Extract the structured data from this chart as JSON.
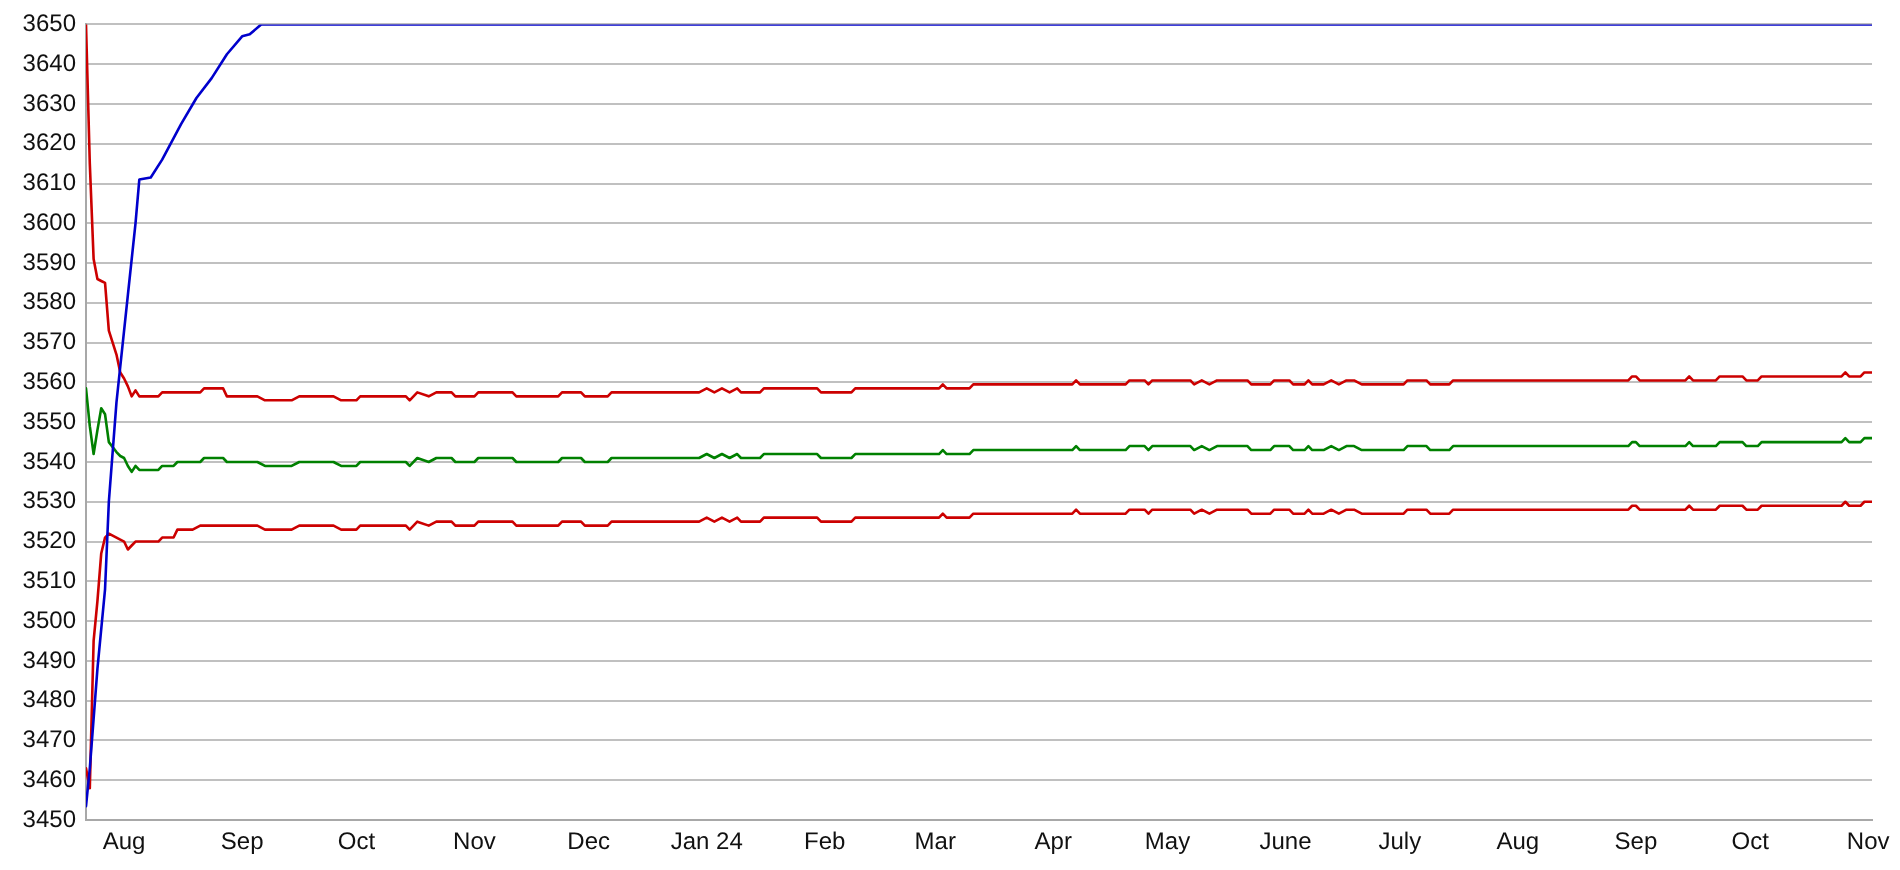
{
  "chart_data": {
    "type": "line",
    "x": [
      "2023-07-22",
      "2023-07-23",
      "2023-07-24",
      "2023-07-25",
      "2023-07-26",
      "2023-07-27",
      "2023-07-28",
      "2023-07-30",
      "2023-07-31",
      "2023-08-01",
      "2023-08-02",
      "2023-08-03",
      "2023-08-04",
      "2023-08-05",
      "2023-08-10",
      "2023-08-11",
      "2023-08-14",
      "2023-08-15",
      "2023-08-19",
      "2023-08-21",
      "2023-08-22",
      "2023-08-27",
      "2023-08-28",
      "2023-09-05",
      "2023-09-07",
      "2023-09-14",
      "2023-09-16",
      "2023-09-25",
      "2023-09-27",
      "2023-10-01",
      "2023-10-02",
      "2023-10-14",
      "2023-10-15",
      "2023-10-17",
      "2023-10-20",
      "2023-10-22",
      "2023-10-26",
      "2023-10-27",
      "2023-11-01",
      "2023-11-02",
      "2023-11-11",
      "2023-11-12",
      "2023-11-23",
      "2023-11-24",
      "2023-11-29",
      "2023-11-30",
      "2023-12-06",
      "2023-12-07",
      "2023-12-30",
      "2024-01-01",
      "2024-01-03",
      "2024-01-05",
      "2024-01-07",
      "2024-01-09",
      "2024-01-10",
      "2024-01-15",
      "2024-01-16",
      "2024-01-30",
      "2024-01-31",
      "2024-02-08",
      "2024-02-09",
      "2024-03-02",
      "2024-03-03",
      "2024-03-04",
      "2024-03-10",
      "2024-03-11",
      "2024-04-06",
      "2024-04-07",
      "2024-04-08",
      "2024-04-20",
      "2024-04-21",
      "2024-04-25",
      "2024-04-26",
      "2024-04-27",
      "2024-05-07",
      "2024-05-08",
      "2024-05-10",
      "2024-05-12",
      "2024-05-14",
      "2024-05-22",
      "2024-05-23",
      "2024-05-28",
      "2024-05-29",
      "2024-06-02",
      "2024-06-03",
      "2024-06-06",
      "2024-06-07",
      "2024-06-08",
      "2024-06-11",
      "2024-06-13",
      "2024-06-15",
      "2024-06-17",
      "2024-06-19",
      "2024-06-21",
      "2024-06-22",
      "2024-07-02",
      "2024-07-03",
      "2024-07-08",
      "2024-07-09",
      "2024-07-14",
      "2024-07-15",
      "2024-08-30",
      "2024-08-31",
      "2024-09-01",
      "2024-09-02",
      "2024-09-14",
      "2024-09-15",
      "2024-09-16",
      "2024-09-17",
      "2024-09-22",
      "2024-09-23",
      "2024-09-29",
      "2024-09-30",
      "2024-10-03",
      "2024-10-04",
      "2024-10-25",
      "2024-10-26",
      "2024-10-27",
      "2024-10-30",
      "2024-10-31",
      "2024-11-02"
    ],
    "series": [
      {
        "color": "#0000cc",
        "x": [
          "2023-07-22",
          "2023-07-23",
          "2023-07-25",
          "2023-07-27",
          "2023-07-28",
          "2023-07-30",
          "2023-08-02",
          "2023-08-04",
          "2023-08-05",
          "2023-08-08",
          "2023-08-11",
          "2023-08-16",
          "2023-08-20",
          "2023-08-24",
          "2023-08-28",
          "2023-09-01",
          "2023-09-03",
          "2023-09-06",
          "2024-11-02"
        ],
        "values": [
          3453.5,
          3463,
          3488,
          3508,
          3530,
          3555,
          3582,
          3600,
          3611,
          3611.5,
          3616,
          3625,
          3631.5,
          3636.5,
          3642.5,
          3647,
          3647.5,
          3650,
          3650
        ]
      },
      {
        "color": "#cc0000",
        "values": [
          3650,
          3615,
          3591,
          3586,
          3585.5,
          3585,
          3573,
          3567,
          3562.5,
          3561,
          3559,
          3556.5,
          3558,
          3556.5,
          3556.5,
          3557.5,
          3557.5,
          3557.5,
          3557.5,
          3557.5,
          3558.5,
          3558.5,
          3556.5,
          3556.5,
          3555.5,
          3555.5,
          3556.5,
          3556.5,
          3555.5,
          3555.5,
          3556.5,
          3556.5,
          3555.5,
          3557.5,
          3556.5,
          3557.5,
          3557.5,
          3556.5,
          3556.5,
          3557.5,
          3557.5,
          3556.5,
          3556.5,
          3557.5,
          3557.5,
          3556.5,
          3556.5,
          3557.5,
          3557.5,
          3558.5,
          3557.5,
          3558.5,
          3557.5,
          3558.5,
          3557.5,
          3557.5,
          3558.5,
          3558.5,
          3557.5,
          3557.5,
          3558.5,
          3558.5,
          3559.5,
          3558.5,
          3558.5,
          3559.5,
          3559.5,
          3560.5,
          3559.5,
          3559.5,
          3560.5,
          3560.5,
          3559.5,
          3560.5,
          3560.5,
          3559.5,
          3560.5,
          3559.5,
          3560.5,
          3560.5,
          3559.5,
          3559.5,
          3560.5,
          3560.5,
          3559.5,
          3559.5,
          3560.5,
          3559.5,
          3559.5,
          3560.5,
          3559.5,
          3560.5,
          3560.5,
          3559.5,
          3559.5,
          3559.5,
          3560.5,
          3560.5,
          3559.5,
          3559.5,
          3560.5,
          3560.5,
          3561.5,
          3561.5,
          3560.5,
          3560.5,
          3561.5,
          3560.5,
          3560.5,
          3560.5,
          3561.5,
          3561.5,
          3560.5,
          3560.5,
          3561.5,
          3561.5,
          3562.5,
          3561.5,
          3561.5,
          3562.5,
          3562.5
        ]
      },
      {
        "color": "#008000",
        "values": [
          3558.5,
          3549,
          3542,
          3548,
          3553.5,
          3552,
          3545,
          3542.5,
          3541.5,
          3541,
          3539,
          3537.5,
          3539,
          3538,
          3538,
          3539,
          3539,
          3540,
          3540,
          3540,
          3541,
          3541,
          3540,
          3540,
          3539,
          3539,
          3540,
          3540,
          3539,
          3539,
          3540,
          3540,
          3539,
          3541,
          3540,
          3541,
          3541,
          3540,
          3540,
          3541,
          3541,
          3540,
          3540,
          3541,
          3541,
          3540,
          3540,
          3541,
          3541,
          3542,
          3541,
          3542,
          3541,
          3542,
          3541,
          3541,
          3542,
          3542,
          3541,
          3541,
          3542,
          3542,
          3543,
          3542,
          3542,
          3543,
          3543,
          3544,
          3543,
          3543,
          3544,
          3544,
          3543,
          3544,
          3544,
          3543,
          3544,
          3543,
          3544,
          3544,
          3543,
          3543,
          3544,
          3544,
          3543,
          3543,
          3544,
          3543,
          3543,
          3544,
          3543,
          3544,
          3544,
          3543,
          3543,
          3543,
          3544,
          3544,
          3543,
          3543,
          3544,
          3544,
          3545,
          3545,
          3544,
          3544,
          3545,
          3544,
          3544,
          3544,
          3545,
          3545,
          3544,
          3544,
          3545,
          3545,
          3546,
          3545,
          3545,
          3546,
          3546
        ]
      },
      {
        "color": "#cc0000",
        "values": [
          3463,
          3458,
          3495,
          3505,
          3517,
          3521,
          3522,
          3521,
          3520.5,
          3520,
          3518,
          3519,
          3520,
          3520,
          3520,
          3521,
          3521,
          3523,
          3523,
          3524,
          3524,
          3524,
          3524,
          3524,
          3523,
          3523,
          3524,
          3524,
          3523,
          3523,
          3524,
          3524,
          3523,
          3525,
          3524,
          3525,
          3525,
          3524,
          3524,
          3525,
          3525,
          3524,
          3524,
          3525,
          3525,
          3524,
          3524,
          3525,
          3525,
          3526,
          3525,
          3526,
          3525,
          3526,
          3525,
          3525,
          3526,
          3526,
          3525,
          3525,
          3526,
          3526,
          3527,
          3526,
          3526,
          3527,
          3527,
          3528,
          3527,
          3527,
          3528,
          3528,
          3527,
          3528,
          3528,
          3527,
          3528,
          3527,
          3528,
          3528,
          3527,
          3527,
          3528,
          3528,
          3527,
          3527,
          3528,
          3527,
          3527,
          3528,
          3527,
          3528,
          3528,
          3527,
          3527,
          3527,
          3528,
          3528,
          3527,
          3527,
          3528,
          3528,
          3529,
          3529,
          3528,
          3528,
          3529,
          3528,
          3528,
          3528,
          3529,
          3529,
          3528,
          3528,
          3529,
          3529,
          3530,
          3529,
          3529,
          3530,
          3530
        ]
      }
    ],
    "xlim": [
      "2023-07-22",
      "2024-11-02"
    ],
    "xticks": [
      {
        "value": "2023-08-01",
        "label": "Aug"
      },
      {
        "value": "2023-09-01",
        "label": "Sep"
      },
      {
        "value": "2023-10-01",
        "label": "Oct"
      },
      {
        "value": "2023-11-01",
        "label": "Nov"
      },
      {
        "value": "2023-12-01",
        "label": "Dec"
      },
      {
        "value": "2024-01-01",
        "label": "Jan 24"
      },
      {
        "value": "2024-02-01",
        "label": "Feb"
      },
      {
        "value": "2024-03-01",
        "label": "Mar"
      },
      {
        "value": "2024-04-01",
        "label": "Apr"
      },
      {
        "value": "2024-05-01",
        "label": "May"
      },
      {
        "value": "2024-06-01",
        "label": "June"
      },
      {
        "value": "2024-07-01",
        "label": "July"
      },
      {
        "value": "2024-08-01",
        "label": "Aug"
      },
      {
        "value": "2024-09-01",
        "label": "Sep"
      },
      {
        "value": "2024-10-01",
        "label": "Oct"
      },
      {
        "value": "2024-11-01",
        "label": "Nov"
      }
    ],
    "ylim": [
      3450,
      3650
    ],
    "yticks": [
      3450,
      3460,
      3470,
      3480,
      3490,
      3500,
      3510,
      3520,
      3530,
      3540,
      3550,
      3560,
      3570,
      3580,
      3590,
      3600,
      3610,
      3620,
      3630,
      3640,
      3650
    ],
    "grid": "y",
    "marker": "none",
    "line_style": "solid"
  }
}
